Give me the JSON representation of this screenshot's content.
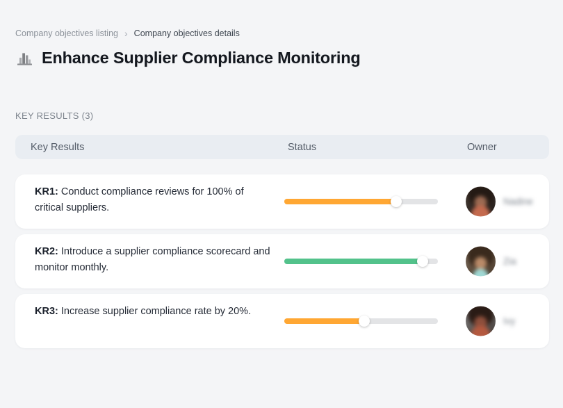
{
  "breadcrumb": {
    "items": [
      {
        "label": "Company objectives listing"
      },
      {
        "label": "Company objectives details"
      }
    ],
    "separator": "›"
  },
  "header": {
    "icon": "buildings-chart-icon",
    "title": "Enhance Supplier Compliance Monitoring"
  },
  "section": {
    "label": "KEY RESULTS (3)"
  },
  "table": {
    "columns": [
      "Key Results",
      "Status",
      "Owner"
    ],
    "rows": [
      {
        "kr_label": "KR1:",
        "description": "Conduct compliance reviews for 100% of critical suppliers.",
        "progress_percent": 73,
        "progress_color": "#FFA733",
        "owner": "Nadine"
      },
      {
        "kr_label": "KR2:",
        "description": "Introduce a supplier compliance scorecard and monitor monthly.",
        "progress_percent": 90,
        "progress_color": "#53C28B",
        "owner": "Zia"
      },
      {
        "kr_label": "KR3:",
        "description": "Increase supplier compliance rate by 20%.",
        "progress_percent": 52,
        "progress_color": "#FFA733",
        "owner": "Ivy"
      }
    ]
  },
  "colors": {
    "page_background": "#F4F5F7",
    "card_background": "#FFFFFF",
    "table_header_background": "#E9EDF2",
    "progress_track": "#E3E4E6",
    "progress_orange": "#FFA733",
    "progress_green": "#53C28B"
  }
}
